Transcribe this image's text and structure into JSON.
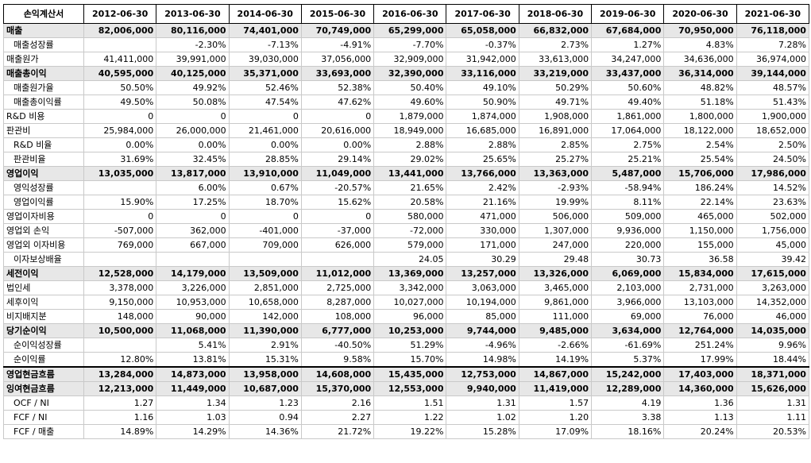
{
  "table": {
    "header": [
      "손익계산서",
      "2012-06-30",
      "2013-06-30",
      "2014-06-30",
      "2015-06-30",
      "2016-06-30",
      "2017-06-30",
      "2018-06-30",
      "2019-06-30",
      "2020-06-30",
      "2021-06-30"
    ],
    "rows": [
      {
        "label": "매출",
        "bold": true,
        "indent": false,
        "values": [
          "82,006,000",
          "80,116,000",
          "74,401,000",
          "70,749,000",
          "65,299,000",
          "65,058,000",
          "66,832,000",
          "67,684,000",
          "70,950,000",
          "76,118,000"
        ]
      },
      {
        "label": "매출성장률",
        "bold": false,
        "indent": true,
        "values": [
          "",
          "-2.30%",
          "-7.13%",
          "-4.91%",
          "-7.70%",
          "-0.37%",
          "2.73%",
          "1.27%",
          "4.83%",
          "7.28%"
        ]
      },
      {
        "label": "매출원가",
        "bold": false,
        "indent": false,
        "values": [
          "41,411,000",
          "39,991,000",
          "39,030,000",
          "37,056,000",
          "32,909,000",
          "31,942,000",
          "33,613,000",
          "34,247,000",
          "34,636,000",
          "36,974,000"
        ]
      },
      {
        "label": "매출총이익",
        "bold": true,
        "indent": false,
        "values": [
          "40,595,000",
          "40,125,000",
          "35,371,000",
          "33,693,000",
          "32,390,000",
          "33,116,000",
          "33,219,000",
          "33,437,000",
          "36,314,000",
          "39,144,000"
        ]
      },
      {
        "label": "매출원가율",
        "bold": false,
        "indent": true,
        "values": [
          "50.50%",
          "49.92%",
          "52.46%",
          "52.38%",
          "50.40%",
          "49.10%",
          "50.29%",
          "50.60%",
          "48.82%",
          "48.57%"
        ]
      },
      {
        "label": "매출총이익률",
        "bold": false,
        "indent": true,
        "values": [
          "49.50%",
          "50.08%",
          "47.54%",
          "47.62%",
          "49.60%",
          "50.90%",
          "49.71%",
          "49.40%",
          "51.18%",
          "51.43%"
        ]
      },
      {
        "label": "R&D 비용",
        "bold": false,
        "indent": false,
        "values": [
          "0",
          "0",
          "0",
          "0",
          "1,879,000",
          "1,874,000",
          "1,908,000",
          "1,861,000",
          "1,800,000",
          "1,900,000"
        ]
      },
      {
        "label": "판관비",
        "bold": false,
        "indent": false,
        "values": [
          "25,984,000",
          "26,000,000",
          "21,461,000",
          "20,616,000",
          "18,949,000",
          "16,685,000",
          "16,891,000",
          "17,064,000",
          "18,122,000",
          "18,652,000"
        ]
      },
      {
        "label": "R&D 비율",
        "bold": false,
        "indent": true,
        "values": [
          "0.00%",
          "0.00%",
          "0.00%",
          "0.00%",
          "2.88%",
          "2.88%",
          "2.85%",
          "2.75%",
          "2.54%",
          "2.50%"
        ]
      },
      {
        "label": "판관비율",
        "bold": false,
        "indent": true,
        "values": [
          "31.69%",
          "32.45%",
          "28.85%",
          "29.14%",
          "29.02%",
          "25.65%",
          "25.27%",
          "25.21%",
          "25.54%",
          "24.50%"
        ]
      },
      {
        "label": "영업이익",
        "bold": true,
        "indent": false,
        "values": [
          "13,035,000",
          "13,817,000",
          "13,910,000",
          "11,049,000",
          "13,441,000",
          "13,766,000",
          "13,363,000",
          "5,487,000",
          "15,706,000",
          "17,986,000"
        ]
      },
      {
        "label": "영익성장률",
        "bold": false,
        "indent": true,
        "values": [
          "",
          "6.00%",
          "0.67%",
          "-20.57%",
          "21.65%",
          "2.42%",
          "-2.93%",
          "-58.94%",
          "186.24%",
          "14.52%"
        ]
      },
      {
        "label": "영업이익률",
        "bold": false,
        "indent": true,
        "values": [
          "15.90%",
          "17.25%",
          "18.70%",
          "15.62%",
          "20.58%",
          "21.16%",
          "19.99%",
          "8.11%",
          "22.14%",
          "23.63%"
        ]
      },
      {
        "label": "영업이자비용",
        "bold": false,
        "indent": false,
        "values": [
          "0",
          "0",
          "0",
          "0",
          "580,000",
          "471,000",
          "506,000",
          "509,000",
          "465,000",
          "502,000"
        ]
      },
      {
        "label": "영업외 손익",
        "bold": false,
        "indent": false,
        "values": [
          "-507,000",
          "362,000",
          "-401,000",
          "-37,000",
          "-72,000",
          "330,000",
          "1,307,000",
          "9,936,000",
          "1,150,000",
          "1,756,000"
        ]
      },
      {
        "label": "영업외 이자비용",
        "bold": false,
        "indent": false,
        "values": [
          "769,000",
          "667,000",
          "709,000",
          "626,000",
          "579,000",
          "171,000",
          "247,000",
          "220,000",
          "155,000",
          "45,000"
        ]
      },
      {
        "label": "이자보상배율",
        "bold": false,
        "indent": true,
        "values": [
          "",
          "",
          "",
          "",
          "24.05",
          "30.29",
          "29.48",
          "30.73",
          "36.58",
          "39.42"
        ]
      },
      {
        "label": "세전이익",
        "bold": true,
        "indent": false,
        "values": [
          "12,528,000",
          "14,179,000",
          "13,509,000",
          "11,012,000",
          "13,369,000",
          "13,257,000",
          "13,326,000",
          "6,069,000",
          "15,834,000",
          "17,615,000"
        ]
      },
      {
        "label": "법인세",
        "bold": false,
        "indent": false,
        "values": [
          "3,378,000",
          "3,226,000",
          "2,851,000",
          "2,725,000",
          "3,342,000",
          "3,063,000",
          "3,465,000",
          "2,103,000",
          "2,731,000",
          "3,263,000"
        ]
      },
      {
        "label": "세후이익",
        "bold": false,
        "indent": false,
        "values": [
          "9,150,000",
          "10,953,000",
          "10,658,000",
          "8,287,000",
          "10,027,000",
          "10,194,000",
          "9,861,000",
          "3,966,000",
          "13,103,000",
          "14,352,000"
        ]
      },
      {
        "label": "비지배지분",
        "bold": false,
        "indent": false,
        "values": [
          "148,000",
          "90,000",
          "142,000",
          "108,000",
          "96,000",
          "85,000",
          "111,000",
          "69,000",
          "76,000",
          "46,000"
        ]
      },
      {
        "label": "당기순이익",
        "bold": true,
        "indent": false,
        "values": [
          "10,500,000",
          "11,068,000",
          "11,390,000",
          "6,777,000",
          "10,253,000",
          "9,744,000",
          "9,485,000",
          "3,634,000",
          "12,764,000",
          "14,035,000"
        ]
      },
      {
        "label": "순이익성장률",
        "bold": false,
        "indent": true,
        "values": [
          "",
          "5.41%",
          "2.91%",
          "-40.50%",
          "51.29%",
          "-4.96%",
          "-2.66%",
          "-61.69%",
          "251.24%",
          "9.96%"
        ]
      },
      {
        "label": "순이익률",
        "bold": false,
        "indent": true,
        "values": [
          "12.80%",
          "13.81%",
          "15.31%",
          "9.58%",
          "15.70%",
          "14.98%",
          "14.19%",
          "5.37%",
          "17.99%",
          "18.44%"
        ]
      },
      {
        "label": "영업현금흐름",
        "bold": true,
        "indent": false,
        "sep": true,
        "values": [
          "13,284,000",
          "14,873,000",
          "13,958,000",
          "14,608,000",
          "15,435,000",
          "12,753,000",
          "14,867,000",
          "15,242,000",
          "17,403,000",
          "18,371,000"
        ]
      },
      {
        "label": "잉여현금흐름",
        "bold": true,
        "indent": false,
        "values": [
          "12,213,000",
          "11,449,000",
          "10,687,000",
          "15,370,000",
          "12,553,000",
          "9,940,000",
          "11,419,000",
          "12,289,000",
          "14,360,000",
          "15,626,000"
        ]
      },
      {
        "label": "OCF / NI",
        "bold": false,
        "indent": true,
        "values": [
          "1.27",
          "1.34",
          "1.23",
          "2.16",
          "1.51",
          "1.31",
          "1.57",
          "4.19",
          "1.36",
          "1.31"
        ]
      },
      {
        "label": "FCF / NI",
        "bold": false,
        "indent": true,
        "values": [
          "1.16",
          "1.03",
          "0.94",
          "2.27",
          "1.22",
          "1.02",
          "1.20",
          "3.38",
          "1.13",
          "1.11"
        ]
      },
      {
        "label": "FCF / 매출",
        "bold": false,
        "indent": true,
        "values": [
          "14.89%",
          "14.29%",
          "14.36%",
          "21.72%",
          "19.22%",
          "15.28%",
          "17.09%",
          "18.16%",
          "20.24%",
          "20.53%"
        ]
      }
    ]
  }
}
